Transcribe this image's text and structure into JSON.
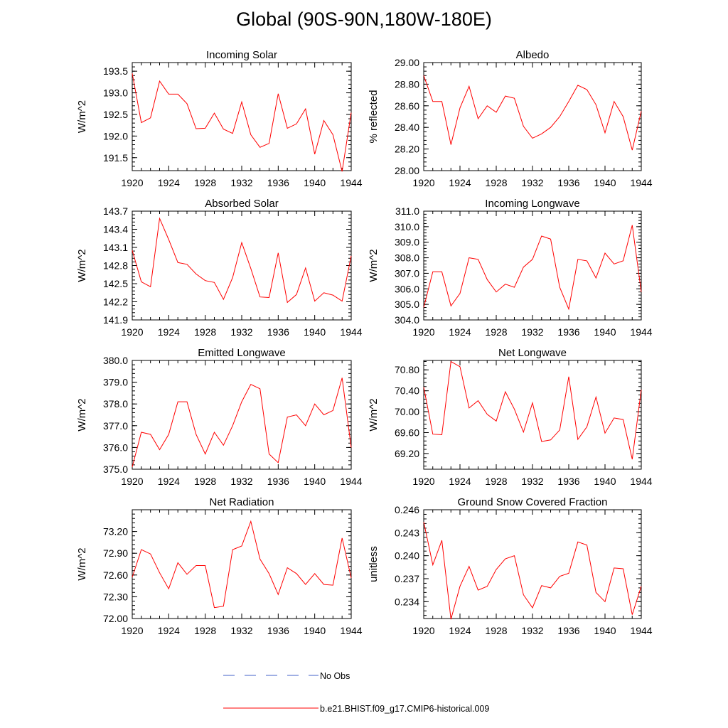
{
  "figure": {
    "title": "Global (90S-90N,180W-180E)"
  },
  "chart_data": [
    {
      "type": "line",
      "title": "Incoming Solar",
      "ylabel": "W/m^2",
      "xlabel": "",
      "xlim": [
        1920,
        1944
      ],
      "xticks": [
        "1920",
        "1924",
        "1928",
        "1932",
        "1936",
        "1940",
        "1944"
      ],
      "ylim": [
        191.2,
        193.7
      ],
      "yticks": [
        "191.5",
        "192.0",
        "192.5",
        "193.0",
        "193.5"
      ],
      "series": [
        {
          "name": "b.e21.BHIST.f09_g17.CMIP6-historical.009",
          "color": "#ff0000",
          "x": [
            1920,
            1921,
            1922,
            1923,
            1924,
            1925,
            1926,
            1927,
            1928,
            1929,
            1930,
            1931,
            1932,
            1933,
            1934,
            1935,
            1936,
            1937,
            1938,
            1939,
            1940,
            1941,
            1942,
            1943,
            1944
          ],
          "values": [
            193.45,
            192.31,
            192.42,
            193.27,
            192.97,
            192.97,
            192.75,
            192.17,
            192.18,
            192.53,
            192.16,
            192.06,
            192.79,
            192.03,
            191.74,
            191.83,
            192.98,
            192.18,
            192.28,
            192.63,
            191.58,
            192.36,
            192.03,
            191.18,
            192.54
          ]
        }
      ]
    },
    {
      "type": "line",
      "title": "Albedo",
      "ylabel": "% reflected",
      "xlabel": "",
      "xlim": [
        1920,
        1944
      ],
      "xticks": [
        "1920",
        "1924",
        "1928",
        "1932",
        "1936",
        "1940",
        "1944"
      ],
      "ylim": [
        28.0,
        29.0
      ],
      "yticks": [
        "28.00",
        "28.20",
        "28.40",
        "28.60",
        "28.80",
        "29.00"
      ],
      "series": [
        {
          "name": "b.e21.BHIST.f09_g17.CMIP6-historical.009",
          "color": "#ff0000",
          "x": [
            1920,
            1921,
            1922,
            1923,
            1924,
            1925,
            1926,
            1927,
            1928,
            1929,
            1930,
            1931,
            1932,
            1933,
            1934,
            1935,
            1936,
            1937,
            1938,
            1939,
            1940,
            1941,
            1942,
            1943,
            1944
          ],
          "values": [
            28.88,
            28.64,
            28.64,
            28.24,
            28.58,
            28.78,
            28.48,
            28.6,
            28.54,
            28.69,
            28.67,
            28.41,
            28.3,
            28.34,
            28.4,
            28.5,
            28.64,
            28.79,
            28.75,
            28.61,
            28.35,
            28.64,
            28.5,
            28.19,
            28.55
          ]
        }
      ]
    },
    {
      "type": "line",
      "title": "Absorbed Solar",
      "ylabel": "W/m^2",
      "xlabel": "",
      "xlim": [
        1920,
        1944
      ],
      "xticks": [
        "1920",
        "1924",
        "1928",
        "1932",
        "1936",
        "1940",
        "1944"
      ],
      "ylim": [
        141.9,
        143.7
      ],
      "yticks": [
        "141.9",
        "142.2",
        "142.5",
        "142.8",
        "143.1",
        "143.4",
        "143.7"
      ],
      "series": [
        {
          "name": "b.e21.BHIST.f09_g17.CMIP6-historical.009",
          "color": "#ff0000",
          "x": [
            1920,
            1921,
            1922,
            1923,
            1924,
            1925,
            1926,
            1927,
            1928,
            1929,
            1930,
            1931,
            1932,
            1933,
            1934,
            1935,
            1936,
            1937,
            1938,
            1939,
            1940,
            1941,
            1942,
            1943,
            1944
          ],
          "values": [
            143.05,
            142.53,
            142.45,
            143.58,
            143.23,
            142.85,
            142.82,
            142.66,
            142.55,
            142.52,
            142.24,
            142.6,
            143.18,
            142.75,
            142.28,
            142.27,
            143.01,
            142.19,
            142.32,
            142.76,
            142.21,
            142.35,
            142.31,
            142.21,
            142.96
          ]
        }
      ]
    },
    {
      "type": "line",
      "title": "Incoming Longwave",
      "ylabel": "W/m^2",
      "xlabel": "",
      "xlim": [
        1920,
        1944
      ],
      "xticks": [
        "1920",
        "1924",
        "1928",
        "1932",
        "1936",
        "1940",
        "1944"
      ],
      "ylim": [
        304.0,
        311.0
      ],
      "yticks": [
        "304.0",
        "305.0",
        "306.0",
        "307.0",
        "308.0",
        "309.0",
        "310.0",
        "311.0"
      ],
      "series": [
        {
          "name": "b.e21.BHIST.f09_g17.CMIP6-historical.009",
          "color": "#ff0000",
          "x": [
            1920,
            1921,
            1922,
            1923,
            1924,
            1925,
            1926,
            1927,
            1928,
            1929,
            1930,
            1931,
            1932,
            1933,
            1934,
            1935,
            1936,
            1937,
            1938,
            1939,
            1940,
            1941,
            1942,
            1943,
            1944
          ],
          "values": [
            304.8,
            307.1,
            307.1,
            304.9,
            305.7,
            308.0,
            307.9,
            306.6,
            305.8,
            306.3,
            306.1,
            307.4,
            307.9,
            309.4,
            309.2,
            306.1,
            304.7,
            307.9,
            307.8,
            306.7,
            308.3,
            307.6,
            307.8,
            310.1,
            305.8
          ]
        }
      ]
    },
    {
      "type": "line",
      "title": "Emitted Longwave",
      "ylabel": "W/m^2",
      "xlabel": "",
      "xlim": [
        1920,
        1944
      ],
      "xticks": [
        "1920",
        "1924",
        "1928",
        "1932",
        "1936",
        "1940",
        "1944"
      ],
      "ylim": [
        375.0,
        380.0
      ],
      "yticks": [
        "375.0",
        "376.0",
        "377.0",
        "378.0",
        "379.0",
        "380.0"
      ],
      "series": [
        {
          "name": "b.e21.BHIST.f09_g17.CMIP6-historical.009",
          "color": "#ff0000",
          "x": [
            1920,
            1921,
            1922,
            1923,
            1924,
            1925,
            1926,
            1927,
            1928,
            1929,
            1930,
            1931,
            1932,
            1933,
            1934,
            1935,
            1936,
            1937,
            1938,
            1939,
            1940,
            1941,
            1942,
            1943,
            1944
          ],
          "values": [
            375.1,
            376.7,
            376.6,
            375.9,
            376.6,
            378.1,
            378.1,
            376.6,
            375.7,
            376.7,
            376.1,
            377.0,
            378.1,
            378.9,
            378.7,
            375.7,
            375.3,
            377.4,
            377.5,
            377.0,
            378.0,
            377.5,
            377.7,
            379.2,
            376.0
          ]
        }
      ]
    },
    {
      "type": "line",
      "title": "Net Longwave",
      "ylabel": "W/m^2",
      "xlabel": "",
      "xlim": [
        1920,
        1944
      ],
      "xticks": [
        "1920",
        "1924",
        "1928",
        "1932",
        "1936",
        "1940",
        "1944"
      ],
      "ylim": [
        68.9,
        70.98
      ],
      "yticks": [
        "69.20",
        "69.60",
        "70.00",
        "70.40",
        "70.80"
      ],
      "series": [
        {
          "name": "b.e21.BHIST.f09_g17.CMIP6-historical.009",
          "color": "#ff0000",
          "x": [
            1920,
            1921,
            1922,
            1923,
            1924,
            1925,
            1926,
            1927,
            1928,
            1929,
            1930,
            1931,
            1932,
            1933,
            1934,
            1935,
            1936,
            1937,
            1938,
            1939,
            1940,
            1941,
            1942,
            1943,
            1944
          ],
          "values": [
            70.47,
            69.57,
            69.56,
            70.96,
            70.86,
            70.07,
            70.21,
            69.95,
            69.82,
            70.38,
            70.05,
            69.61,
            70.17,
            69.43,
            69.46,
            69.65,
            70.67,
            69.47,
            69.71,
            70.28,
            69.59,
            69.88,
            69.85,
            69.09,
            70.42
          ]
        }
      ]
    },
    {
      "type": "line",
      "title": "Net Radiation",
      "ylabel": "W/m^2",
      "xlabel": "",
      "xlim": [
        1920,
        1944
      ],
      "xticks": [
        "1920",
        "1924",
        "1928",
        "1932",
        "1936",
        "1940",
        "1944"
      ],
      "ylim": [
        72.0,
        73.5
      ],
      "yticks": [
        "72.00",
        "72.30",
        "72.60",
        "72.90",
        "73.20"
      ],
      "series": [
        {
          "name": "b.e21.BHIST.f09_g17.CMIP6-historical.009",
          "color": "#ff0000",
          "x": [
            1920,
            1921,
            1922,
            1923,
            1924,
            1925,
            1926,
            1927,
            1928,
            1929,
            1930,
            1931,
            1932,
            1933,
            1934,
            1935,
            1936,
            1937,
            1938,
            1939,
            1940,
            1941,
            1942,
            1943,
            1944
          ],
          "values": [
            72.57,
            72.95,
            72.89,
            72.63,
            72.41,
            72.77,
            72.61,
            72.73,
            72.73,
            72.15,
            72.17,
            72.95,
            73.0,
            73.34,
            72.82,
            72.62,
            72.33,
            72.7,
            72.62,
            72.47,
            72.62,
            72.47,
            72.46,
            73.11,
            72.56
          ]
        }
      ]
    },
    {
      "type": "line",
      "title": "Ground Snow Covered Fraction",
      "ylabel": "unitless",
      "xlabel": "",
      "xlim": [
        1920,
        1944
      ],
      "xticks": [
        "1920",
        "1924",
        "1928",
        "1932",
        "1936",
        "1940",
        "1944"
      ],
      "ylim": [
        0.2318,
        0.246
      ],
      "yticks": [
        "0.234",
        "0.237",
        "0.240",
        "0.243",
        "0.246"
      ],
      "series": [
        {
          "name": "b.e21.BHIST.f09_g17.CMIP6-historical.009",
          "color": "#ff0000",
          "x": [
            1920,
            1921,
            1922,
            1923,
            1924,
            1925,
            1926,
            1927,
            1928,
            1929,
            1930,
            1931,
            1932,
            1933,
            1934,
            1935,
            1936,
            1937,
            1938,
            1939,
            1940,
            1941,
            1942,
            1943,
            1944
          ],
          "values": [
            0.2444,
            0.2388,
            0.242,
            0.2317,
            0.236,
            0.2386,
            0.2355,
            0.236,
            0.2382,
            0.2396,
            0.24,
            0.2349,
            0.2332,
            0.2361,
            0.2358,
            0.2373,
            0.2377,
            0.2418,
            0.2414,
            0.2352,
            0.234,
            0.2384,
            0.2383,
            0.2323,
            0.236
          ]
        }
      ]
    }
  ],
  "legend": {
    "position": "bottom-center",
    "items": [
      {
        "label": "No Obs",
        "color": "#4060c8",
        "style": "dashed"
      },
      {
        "label": "b.e21.BHIST.f09_g17.CMIP6-historical.009",
        "color": "#ff0000",
        "style": "solid"
      }
    ]
  }
}
